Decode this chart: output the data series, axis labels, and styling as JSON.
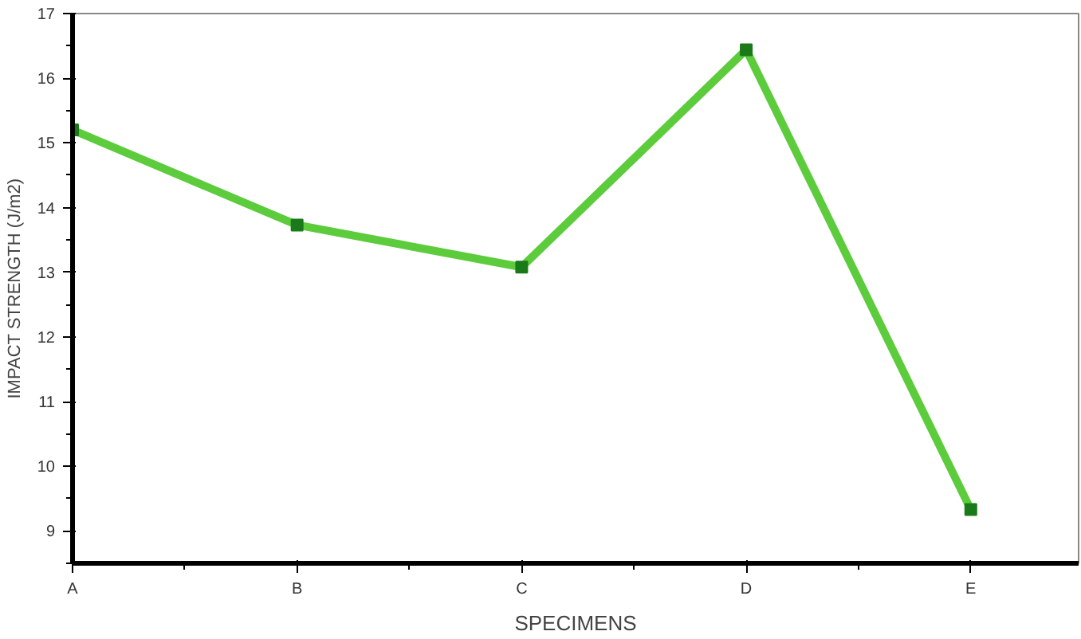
{
  "chart_data": {
    "type": "line",
    "xlabel": "SPECIMENS",
    "ylabel": "IMPACT STRENGTH (J/m2)",
    "categories": [
      "A",
      "B",
      "C",
      "D",
      "E"
    ],
    "series": [
      {
        "color": "#5ccc3c",
        "values": [
          15.2,
          13.73,
          13.08,
          16.44,
          9.33
        ]
      }
    ],
    "ylim": [
      8.5,
      17
    ],
    "yticks": [
      9,
      10,
      11,
      12,
      13,
      14,
      15,
      16,
      17
    ],
    "grid": false,
    "marker": "square",
    "line_style": "solid"
  }
}
